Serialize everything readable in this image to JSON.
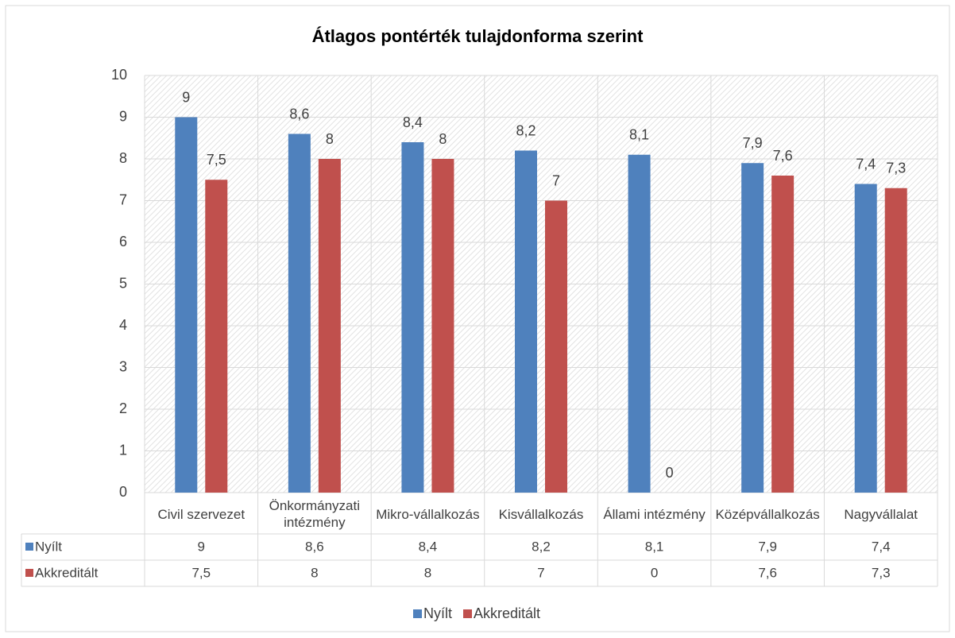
{
  "chart_data": {
    "type": "bar",
    "title": "Átlagos pontérték tulajdonforma szerint",
    "categories": [
      "Civil szervezet",
      "Önkormányzati intézmény",
      "Mikro-vállalkozás",
      "Kisvállalkozás",
      "Állami intézmény",
      "Középvállalkozás",
      "Nagyvállalat"
    ],
    "series": [
      {
        "name": "Nyílt",
        "color": "#4f81bd",
        "values": [
          9,
          8.6,
          8.4,
          8.2,
          8.1,
          7.9,
          7.4
        ],
        "value_labels": [
          "9",
          "8,6",
          "8,4",
          "8,2",
          "8,1",
          "7,9",
          "7,4"
        ]
      },
      {
        "name": "Akkreditált",
        "color": "#c0504d",
        "values": [
          7.5,
          8,
          8,
          7,
          0,
          7.6,
          7.3
        ],
        "value_labels": [
          "7,5",
          "8",
          "8",
          "7",
          "0",
          "7,6",
          "7,3"
        ]
      }
    ],
    "ylim": [
      0,
      10
    ],
    "yticks": [
      0,
      1,
      2,
      3,
      4,
      5,
      6,
      7,
      8,
      9,
      10
    ],
    "grid": true,
    "legend": "bottom"
  }
}
